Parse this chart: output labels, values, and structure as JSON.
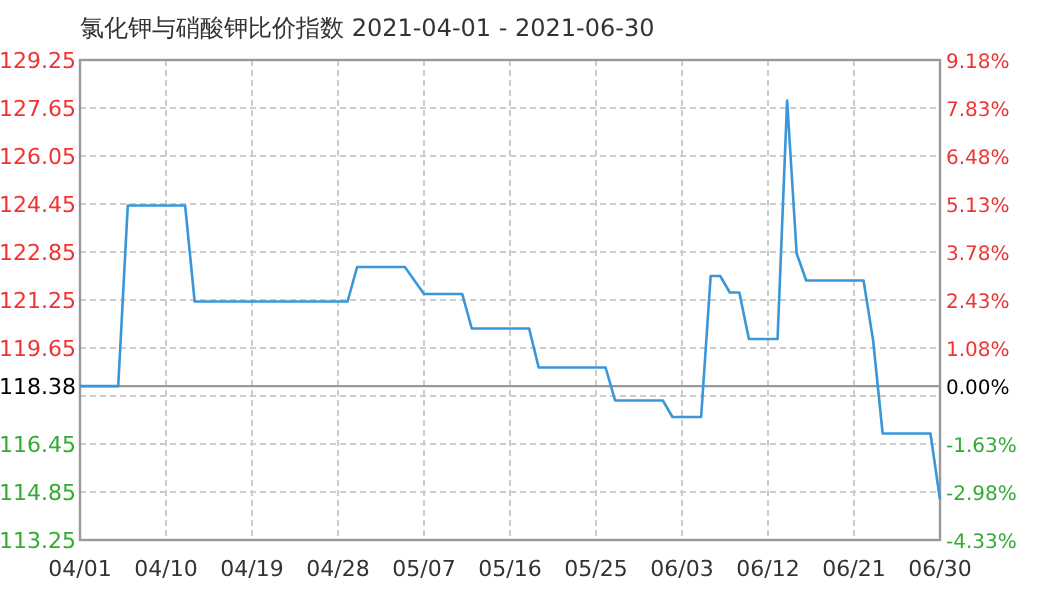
{
  "chart_data": {
    "type": "line",
    "title": "氯化钾与硝酸钾比价指数 2021-04-01 - 2021-06-30",
    "x": [
      "2021-04-01",
      "2021-04-05",
      "2021-04-06",
      "2021-04-12",
      "2021-04-13",
      "2021-04-29",
      "2021-04-30",
      "2021-05-05",
      "2021-05-07",
      "2021-05-11",
      "2021-05-12",
      "2021-05-18",
      "2021-05-19",
      "2021-05-26",
      "2021-05-27",
      "2021-06-01",
      "2021-06-02",
      "2021-06-05",
      "2021-06-06",
      "2021-06-07",
      "2021-06-08",
      "2021-06-09",
      "2021-06-10",
      "2021-06-13",
      "2021-06-14",
      "2021-06-15",
      "2021-06-16",
      "2021-06-22",
      "2021-06-23",
      "2021-06-24",
      "2021-06-29",
      "2021-06-30"
    ],
    "series": [
      {
        "color": "#3a96d8",
        "values": [
          118.38,
          118.38,
          124.4,
          124.4,
          121.2,
          121.2,
          122.35,
          122.35,
          121.45,
          121.45,
          120.3,
          120.3,
          119.0,
          119.0,
          117.9,
          117.9,
          117.35,
          117.35,
          122.05,
          122.05,
          121.5,
          121.5,
          119.95,
          119.95,
          127.9,
          122.8,
          121.9,
          121.9,
          119.9,
          116.8,
          116.8,
          114.6
        ]
      }
    ],
    "xlim": [
      "2021-04-01",
      "2021-06-30"
    ],
    "xticks": [
      {
        "value": "2021-04-01",
        "label": "04/01"
      },
      {
        "value": "2021-04-10",
        "label": "04/10"
      },
      {
        "value": "2021-04-19",
        "label": "04/19"
      },
      {
        "value": "2021-04-28",
        "label": "04/28"
      },
      {
        "value": "2021-05-07",
        "label": "05/07"
      },
      {
        "value": "2021-05-16",
        "label": "05/16"
      },
      {
        "value": "2021-05-25",
        "label": "05/25"
      },
      {
        "value": "2021-06-03",
        "label": "06/03"
      },
      {
        "value": "2021-06-12",
        "label": "06/12"
      },
      {
        "value": "2021-06-21",
        "label": "06/21"
      },
      {
        "value": "2021-06-30",
        "label": "06/30"
      }
    ],
    "ylim": [
      113.25,
      129.25
    ],
    "yticks": [
      {
        "value": 113.25,
        "label": "113.25"
      },
      {
        "value": 114.85,
        "label": "114.85"
      },
      {
        "value": 116.45,
        "label": "116.45"
      },
      {
        "value": 118.05,
        "label": null
      },
      {
        "value": 118.38,
        "label": "118.38"
      },
      {
        "value": 119.65,
        "label": "119.65"
      },
      {
        "value": 121.25,
        "label": "121.25"
      },
      {
        "value": 122.85,
        "label": "122.85"
      },
      {
        "value": 124.45,
        "label": "124.45"
      },
      {
        "value": 126.05,
        "label": "126.05"
      },
      {
        "value": 127.65,
        "label": "127.65"
      },
      {
        "value": 129.25,
        "label": "129.25"
      }
    ],
    "y2lim": [
      -4.33,
      9.18
    ],
    "y2ticks": [
      {
        "value": -4.33,
        "label": "-4.33%"
      },
      {
        "value": -2.98,
        "label": "-2.98%"
      },
      {
        "value": -1.63,
        "label": "-1.63%"
      },
      {
        "value": 0,
        "label": "0.00%"
      },
      {
        "value": 1.08,
        "label": "1.08%"
      },
      {
        "value": 2.43,
        "label": "2.43%"
      },
      {
        "value": 3.78,
        "label": "3.78%"
      },
      {
        "value": 5.13,
        "label": "5.13%"
      },
      {
        "value": 6.48,
        "label": "6.48%"
      },
      {
        "value": 7.83,
        "label": "7.83%"
      },
      {
        "value": 9.18,
        "label": "9.18%"
      }
    ],
    "ref_lines": [
      {
        "axis": "y",
        "value": 118.38,
        "color": "#999999"
      }
    ],
    "grid": true,
    "marker": "none",
    "line_style": "solid"
  }
}
